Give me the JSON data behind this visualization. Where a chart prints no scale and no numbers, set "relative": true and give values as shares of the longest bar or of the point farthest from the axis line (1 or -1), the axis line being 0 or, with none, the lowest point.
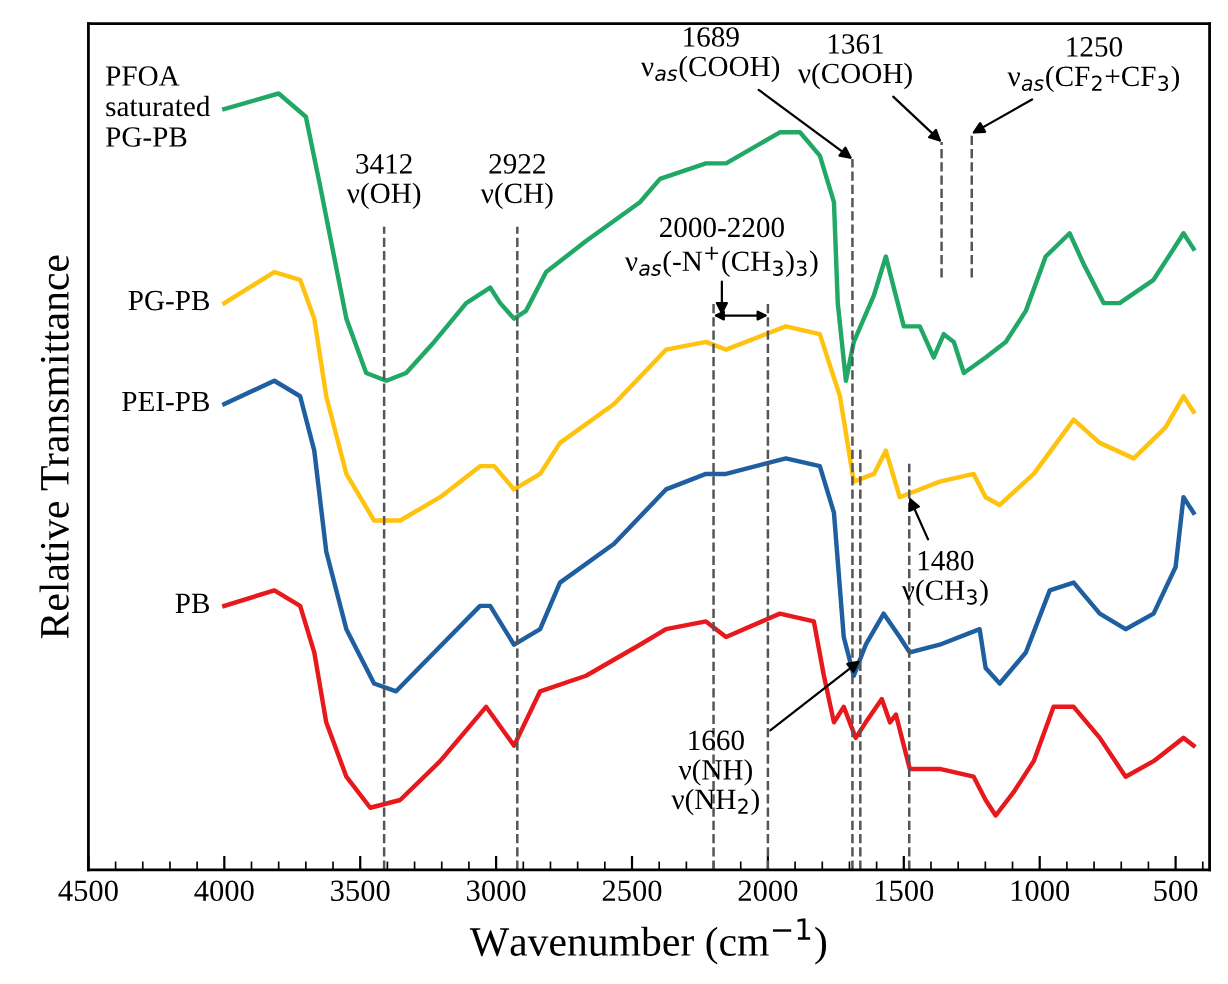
{
  "chart_data": {
    "type": "line",
    "relative": true,
    "xlabel": "Wavenumber (cm$^{−1}$)",
    "ylabel": "Relative Transmittance",
    "xlim": [
      4500,
      375
    ],
    "xticks": [
      4500,
      4000,
      3500,
      3000,
      2500,
      2000,
      1500,
      1000,
      500
    ],
    "tick_labels": "x",
    "legend": false,
    "marker": "none",
    "line_style": "solid",
    "series": [
      {
        "name": "PFOA\nsaturated\nPG-PB",
        "color": "#22a866",
        "x": [
          4000,
          3800,
          3700,
          3647,
          3551,
          3478,
          3404,
          3331,
          3228,
          3110,
          3022,
          2985,
          2934,
          2890,
          2816,
          2669,
          2471,
          2397,
          2228,
          2154,
          1956,
          1882,
          1809,
          1757,
          1743,
          1713,
          1684,
          1610,
          1566,
          1537,
          1500,
          1441,
          1390,
          1353,
          1316,
          1279,
          1199,
          1125,
          1051,
          978,
          890,
          838,
          765,
          706,
          581,
          507,
          471,
          434
        ],
        "values": [
          0.98,
          1.0,
          0.97,
          0.88,
          0.71,
          0.64,
          0.63,
          0.64,
          0.68,
          0.73,
          0.75,
          0.73,
          0.71,
          0.72,
          0.77,
          0.81,
          0.86,
          0.89,
          0.91,
          0.91,
          0.95,
          0.95,
          0.92,
          0.86,
          0.73,
          0.63,
          0.68,
          0.74,
          0.79,
          0.75,
          0.7,
          0.7,
          0.66,
          0.69,
          0.68,
          0.64,
          0.66,
          0.68,
          0.72,
          0.79,
          0.82,
          0.78,
          0.73,
          0.73,
          0.76,
          0.8,
          0.82,
          0.8
        ]
      },
      {
        "name": "PG-PB",
        "color": "#ffc20e",
        "x": [
          4000,
          3816,
          3721,
          3669,
          3625,
          3551,
          3449,
          3353,
          3206,
          3059,
          3007,
          2934,
          2838,
          2765,
          2566,
          2375,
          2228,
          2154,
          1934,
          1809,
          1735,
          1684,
          1610,
          1566,
          1515,
          1368,
          1243,
          1199,
          1147,
          1022,
          875,
          779,
          654,
          537,
          471,
          434
        ],
        "values": [
          0.73,
          0.77,
          0.76,
          0.71,
          0.61,
          0.51,
          0.45,
          0.45,
          0.48,
          0.52,
          0.52,
          0.49,
          0.51,
          0.55,
          0.6,
          0.67,
          0.68,
          0.67,
          0.7,
          0.69,
          0.61,
          0.5,
          0.51,
          0.54,
          0.48,
          0.5,
          0.51,
          0.48,
          0.47,
          0.51,
          0.58,
          0.55,
          0.53,
          0.57,
          0.61,
          0.59
        ]
      },
      {
        "name": "PEI-PB",
        "color": "#1f5fa0",
        "x": [
          4000,
          3816,
          3721,
          3669,
          3625,
          3551,
          3449,
          3368,
          3228,
          3059,
          3022,
          2934,
          2838,
          2765,
          2566,
          2375,
          2228,
          2154,
          1934,
          1809,
          1757,
          1721,
          1684,
          1640,
          1574,
          1515,
          1478,
          1368,
          1221,
          1199,
          1147,
          1051,
          963,
          875,
          779,
          684,
          581,
          500,
          471,
          434
        ],
        "values": [
          0.6,
          0.63,
          0.61,
          0.54,
          0.41,
          0.31,
          0.24,
          0.23,
          0.28,
          0.34,
          0.34,
          0.29,
          0.31,
          0.37,
          0.42,
          0.49,
          0.51,
          0.51,
          0.53,
          0.52,
          0.46,
          0.3,
          0.25,
          0.29,
          0.33,
          0.3,
          0.28,
          0.29,
          0.31,
          0.26,
          0.24,
          0.28,
          0.36,
          0.37,
          0.33,
          0.31,
          0.33,
          0.39,
          0.48,
          0.46
        ]
      },
      {
        "name": "PB",
        "color": "#e8191c",
        "x": [
          4000,
          3816,
          3721,
          3669,
          3625,
          3551,
          3463,
          3353,
          3206,
          3037,
          2934,
          2838,
          2669,
          2471,
          2375,
          2228,
          2154,
          1956,
          1831,
          1794,
          1757,
          1721,
          1677,
          1640,
          1581,
          1551,
          1529,
          1478,
          1368,
          1243,
          1199,
          1162,
          1096,
          1022,
          949,
          875,
          779,
          684,
          581,
          471,
          434
        ],
        "values": [
          0.34,
          0.36,
          0.34,
          0.28,
          0.19,
          0.12,
          0.08,
          0.09,
          0.14,
          0.21,
          0.16,
          0.23,
          0.25,
          0.29,
          0.31,
          0.32,
          0.3,
          0.33,
          0.32,
          0.25,
          0.19,
          0.21,
          0.17,
          0.19,
          0.22,
          0.19,
          0.2,
          0.13,
          0.13,
          0.12,
          0.09,
          0.07,
          0.1,
          0.14,
          0.21,
          0.21,
          0.17,
          0.12,
          0.14,
          0.17,
          0.16
        ]
      }
    ],
    "ref_lines": [
      {
        "axis": "x",
        "value": 3412,
        "label": "3412\nν(OH)",
        "line_style": "dashed",
        "color": "#555555"
      },
      {
        "axis": "x",
        "value": 2922,
        "label": "2922\nν(CH)",
        "line_style": "dashed",
        "color": "#555555"
      },
      {
        "axis": "x",
        "value": 2200,
        "line_style": "dashed",
        "color": "#555555"
      },
      {
        "axis": "x",
        "value": 2000,
        "line_style": "dashed",
        "color": "#555555"
      },
      {
        "axis": "x",
        "value": 1689,
        "label": "1689\nν$_{as}$(COOH)",
        "line_style": "dashed",
        "color": "#555555"
      },
      {
        "axis": "x",
        "value": 1660,
        "line_style": "dashed",
        "color": "#555555"
      },
      {
        "axis": "x",
        "value": 1480,
        "line_style": "dashed",
        "color": "#555555"
      },
      {
        "axis": "x",
        "value": 1361,
        "label": "1361\nν(COOH)",
        "line_style": "dashed",
        "color": "#555555"
      },
      {
        "axis": "x",
        "value": 1250,
        "label": "1250\nν$_{as}$(CF$_{2}$+CF$_{3}$)",
        "line_style": "dashed",
        "color": "#555555"
      }
    ],
    "annotations": [
      "2000-2200\nν$_{as}$(-N$^{+}$(CH$_{3}$)$_{3}$)",
      {
        "text": "1660\nν(NH)\nν(NH$_{2}$)",
        "x": 1660,
        "y": 0.27
      },
      {
        "text": "1480\nν(CH$_{3}$)",
        "x": 1480,
        "y": 0.48
      }
    ]
  }
}
